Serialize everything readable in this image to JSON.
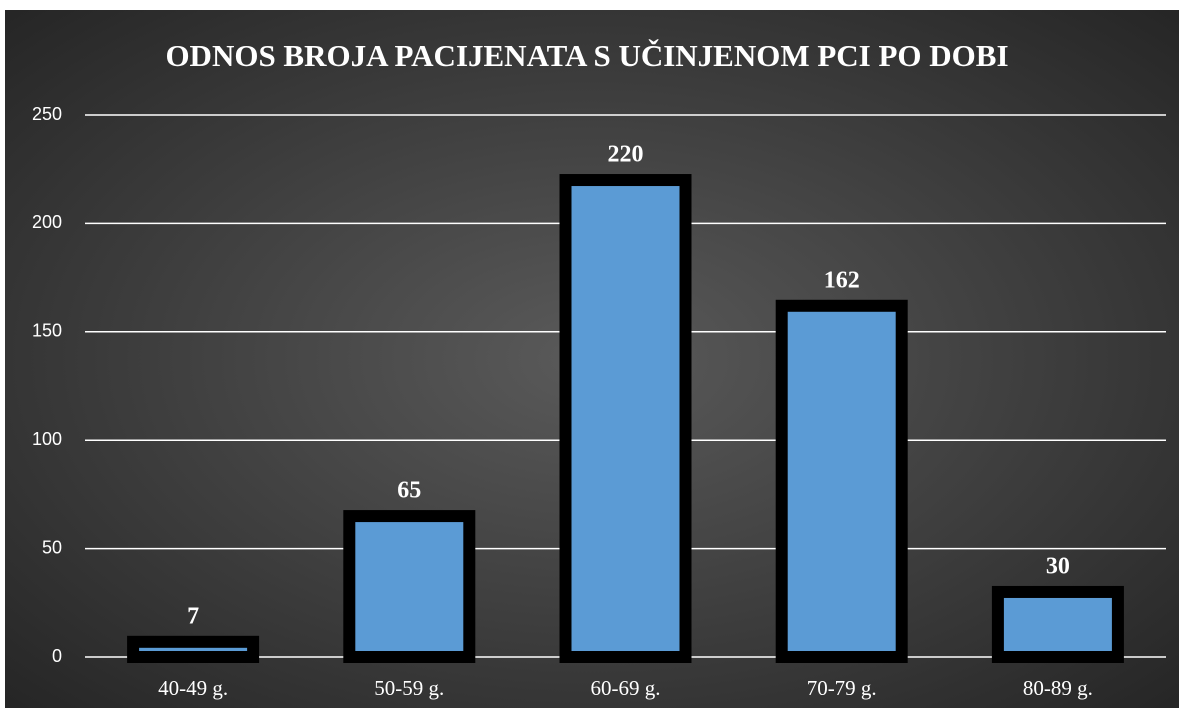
{
  "chart_data": {
    "type": "bar",
    "title": "ODNOS BROJA PACIJENATA S UČINJENOM PCI PO DOBI",
    "categories": [
      "40-49 g.",
      "50-59 g.",
      "60-69 g.",
      "70-79 g.",
      "80-89 g."
    ],
    "values": [
      7,
      65,
      220,
      162,
      30
    ],
    "color": "#5b9bd5",
    "ylim": [
      0,
      250
    ],
    "yticks": [
      0,
      50,
      100,
      150,
      200,
      250
    ],
    "grid": true
  }
}
